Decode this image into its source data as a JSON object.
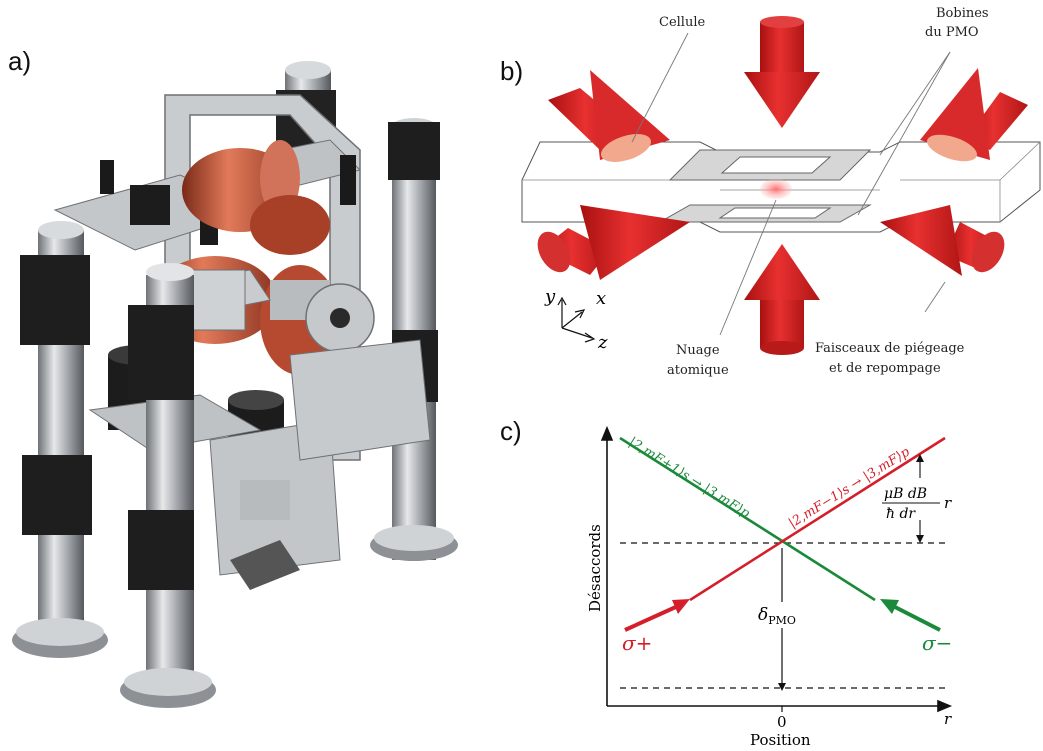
{
  "panels": {
    "a": {
      "letter": "a)"
    },
    "b": {
      "letter": "b)",
      "labels": {
        "cell": "Cellule",
        "coils_line1": "Bobines",
        "coils_line2": "du PMO",
        "cloud_line1": "Nuage",
        "cloud_line2": "atomique",
        "beams_line1": "Faisceaux de piégeage",
        "beams_line2": "et de repompage"
      },
      "axes": {
        "y": "y",
        "x": "x",
        "z": "z"
      }
    },
    "c": {
      "letter": "c)",
      "ylabel": "Désaccords",
      "xlabel": "Position",
      "x_axis_symbol": "r",
      "x_tick_zero": "0",
      "detuning_label": "δ",
      "detuning_sub": "PMO",
      "zeeman_label_num": "μB dB",
      "zeeman_label_den": "ħ dr",
      "zeeman_label_r": "r",
      "transition_green": "|2,mF+1⟩s → |3,mF⟩p",
      "transition_red": "|2,mF−1⟩s → |3,mF⟩p",
      "sigma_plus": "σ+",
      "sigma_minus": "σ−",
      "colors": {
        "green": "#1a8a3a",
        "red": "#d41f2a"
      }
    }
  },
  "colors": {
    "beam_red": "#d42020",
    "copper": "#c8553a",
    "metal": "#b8bcc0",
    "dark": "#1c1c1c"
  }
}
